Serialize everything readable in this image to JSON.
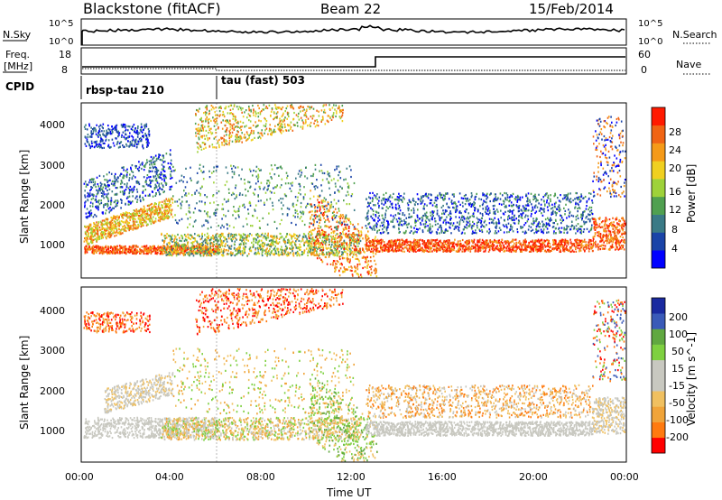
{
  "header": {
    "title": "Blackstone (fitACF)",
    "beam": "Beam 22",
    "date": "15/Feb/2014"
  },
  "colors": {
    "power_scale": [
      "#0000ff",
      "#1a44a8",
      "#3a7a86",
      "#50a050",
      "#9ed23a",
      "#f0d020",
      "#f59a18",
      "#f06414",
      "#ff1a00"
    ],
    "velocity_scale": [
      "#ff0000",
      "#ff7a10",
      "#f0a43a",
      "#f0c060",
      "#c8c8c0",
      "#c8c8c0",
      "#7ed040",
      "#60a840",
      "#3a5ab8",
      "#1a2aa0"
    ],
    "ground_scatter": "#c0c0b8"
  },
  "noise_panel": {
    "left_label": "N.Sky",
    "right_label": "N.Search",
    "left_ticks": [
      "10^5",
      "10^0"
    ],
    "right_ticks": [
      "10^5",
      "10^0"
    ]
  },
  "freq_panel": {
    "left_label_line1": "Freq.",
    "left_label_line2": "[MHz]",
    "right_label": "Nave",
    "left_ticks": [
      "18",
      "8"
    ],
    "right_ticks": [
      "60",
      "0"
    ]
  },
  "cpid": {
    "label": "CPID",
    "segments": [
      {
        "name": "rbsp-tau 210",
        "start_hour": 0,
        "end_hour": 6
      },
      {
        "name": "tau (fast) 503",
        "start_hour": 6,
        "end_hour": 24
      }
    ]
  },
  "chart_data": [
    {
      "type": "heatmap",
      "panel": "power",
      "xlabel": "",
      "ylabel": "Slant Range [km]",
      "xlim": [
        0,
        24
      ],
      "ylim": [
        180,
        4500
      ],
      "yticks": [
        "1000",
        "2000",
        "3000",
        "4000"
      ],
      "colorbar_label": "Power [dB]",
      "colorbar_ticks": [
        "28",
        "24",
        "20",
        "16",
        "12",
        "8",
        "4"
      ]
    },
    {
      "type": "heatmap",
      "panel": "velocity",
      "xlabel": "Time UT",
      "ylabel": "Slant Range [km]",
      "xlim": [
        0,
        24
      ],
      "ylim": [
        180,
        4500
      ],
      "xticks": [
        "00:00",
        "04:00",
        "08:00",
        "12:00",
        "16:00",
        "20:00",
        "00:00"
      ],
      "yticks": [
        "1000",
        "2000",
        "3000",
        "4000"
      ],
      "colorbar_label": "Velocity [m s^-1]",
      "colorbar_ticks": [
        "200",
        "100",
        "50",
        "15",
        "-15",
        "-50",
        "-100",
        "-200"
      ]
    }
  ]
}
